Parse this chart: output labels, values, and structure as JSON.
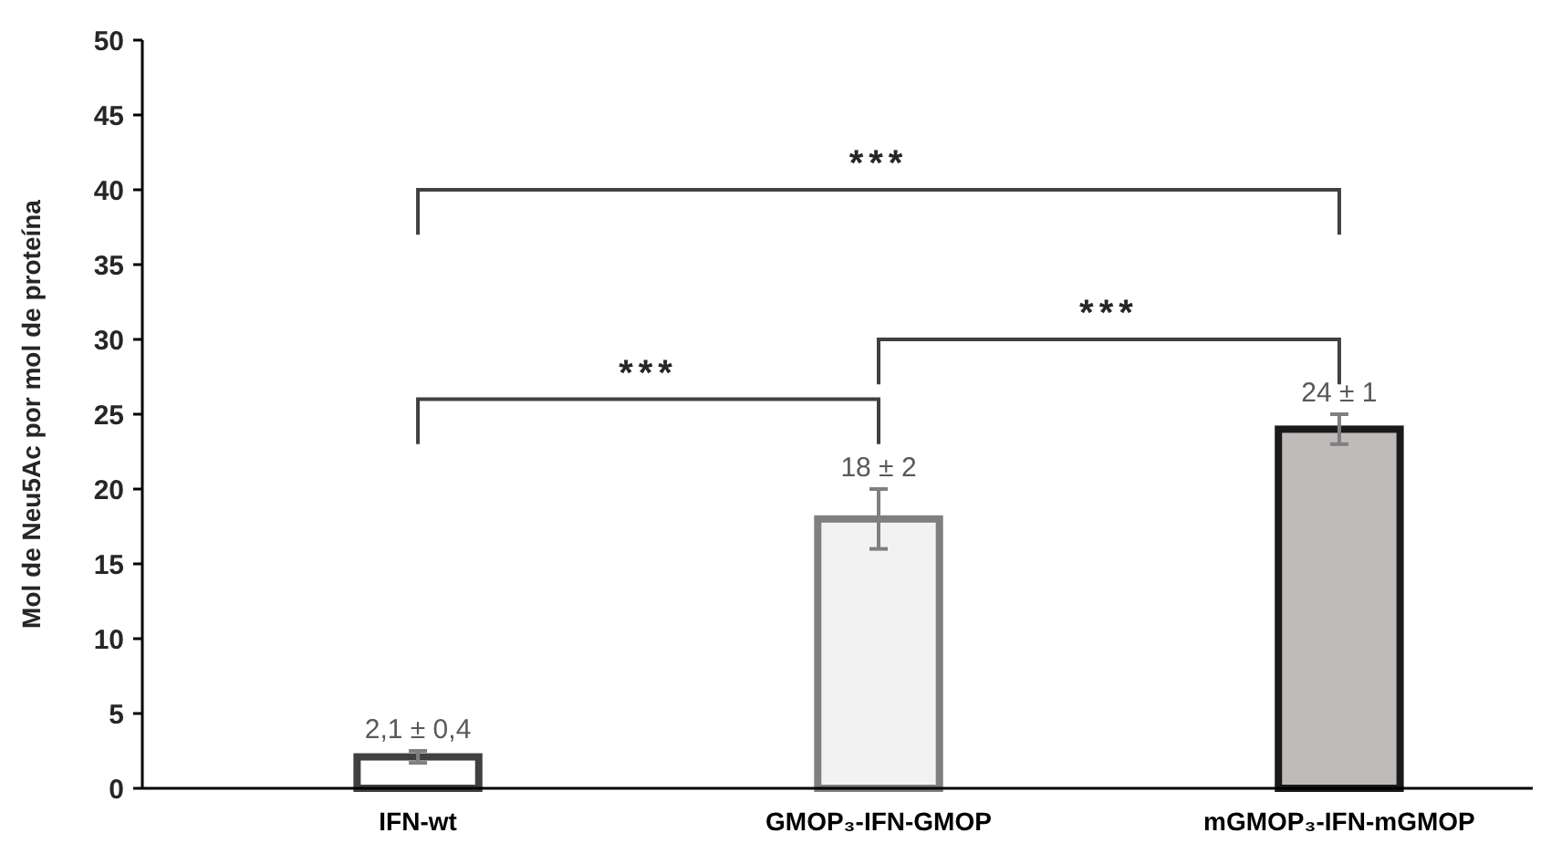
{
  "chart_data": {
    "type": "bar",
    "ylabel": "Mol de Neu5Ac por mol de proteína",
    "categories": [
      "IFN-wt",
      "GMOP₃-IFN-GMOP",
      "mGMOP₃-IFN-mGMOP"
    ],
    "values": [
      2.1,
      18,
      24
    ],
    "errors": [
      0.4,
      2,
      1
    ],
    "value_labels": [
      "2,1 ± 0,4",
      "18 ± 2",
      "24 ± 1"
    ],
    "colors": [
      "#ffffff",
      "#f2f2f2",
      "#bfbbbb"
    ],
    "ylim": [
      0,
      50
    ],
    "yticks": [
      0,
      5,
      10,
      15,
      20,
      25,
      30,
      35,
      40,
      45,
      50
    ],
    "grid": false,
    "annotations": [
      "***",
      "***",
      "***"
    ]
  }
}
